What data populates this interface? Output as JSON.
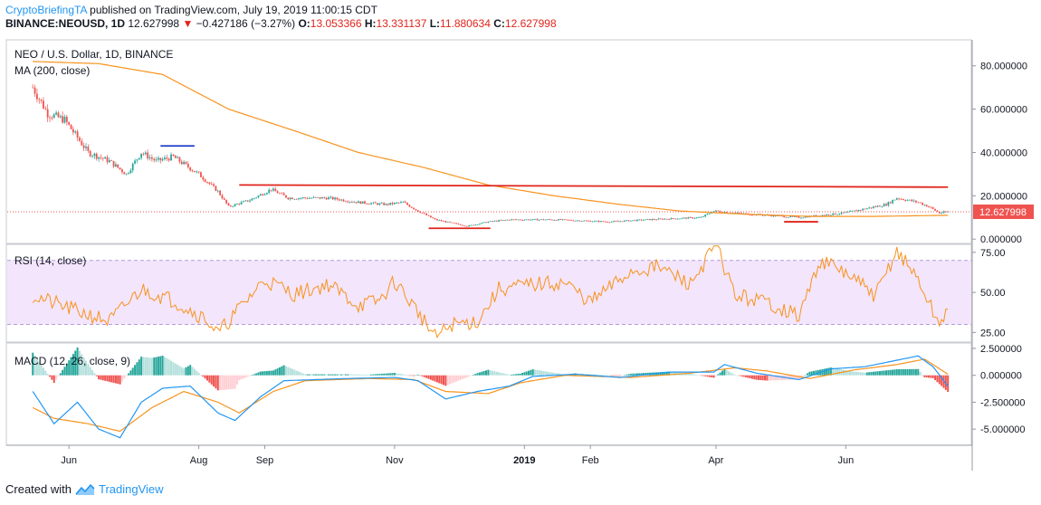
{
  "header": {
    "author": "CryptoBriefingTA",
    "published_text": "published on TradingView.com, July 19, 2019 11:00:15 CDT",
    "symbol_line": "BINANCE:NEOUSD, 1D",
    "last": "12.627998",
    "change": "−0.427186 (−3.27%)",
    "o_label": "O:",
    "o": "13.053366",
    "h_label": "H:",
    "h": "13.331137",
    "l_label": "L:",
    "l": "11.880634",
    "c_label": "C:",
    "c": "12.627998"
  },
  "footer": {
    "created_with": "Created with",
    "brand": "TradingView"
  },
  "colors": {
    "up": "#26a69a",
    "down": "#ef5350",
    "ma": "#f7931e",
    "rsi": "#f7931e",
    "macd": "#2196f3",
    "signal": "#f7931e",
    "resistance": "#e0251b",
    "support_blue": "#1f3cc7",
    "rsi_band": "#f3e5fb"
  },
  "chart_data": [
    {
      "type": "candlestick",
      "title": "NEO / U.S. Dollar, 1D, BINANCE",
      "indicator": "MA (200, close)",
      "last_value_label": "12.627998",
      "y_ticks": [
        "80.000000",
        "60.000000",
        "40.000000",
        "20.000000",
        "0.000000"
      ],
      "ylim": [
        -2,
        92
      ],
      "x_ticks": [
        "Jun",
        "Aug",
        "Sep",
        "Nov",
        "2019",
        "Feb",
        "Apr",
        "Jun"
      ],
      "close_keypoints": [
        [
          "2018-05-15",
          70
        ],
        [
          "2018-05-22",
          58
        ],
        [
          "2018-05-30",
          55
        ],
        [
          "2018-06-10",
          40
        ],
        [
          "2018-06-20",
          36
        ],
        [
          "2018-06-28",
          30
        ],
        [
          "2018-07-05",
          40
        ],
        [
          "2018-07-12",
          36
        ],
        [
          "2018-07-20",
          38
        ],
        [
          "2018-08-01",
          30
        ],
        [
          "2018-08-10",
          22
        ],
        [
          "2018-08-15",
          15
        ],
        [
          "2018-08-25",
          18
        ],
        [
          "2018-09-04",
          23
        ],
        [
          "2018-09-12",
          19
        ],
        [
          "2018-10-01",
          19
        ],
        [
          "2018-10-15",
          17
        ],
        [
          "2018-10-28",
          16
        ],
        [
          "2018-11-05",
          17
        ],
        [
          "2018-11-12",
          13
        ],
        [
          "2018-11-20",
          9
        ],
        [
          "2018-12-05",
          6
        ],
        [
          "2018-12-15",
          8
        ],
        [
          "2018-12-25",
          9
        ],
        [
          "2019-01-15",
          9
        ],
        [
          "2019-02-10",
          8
        ],
        [
          "2019-02-28",
          9
        ],
        [
          "2019-03-25",
          10
        ],
        [
          "2019-03-31",
          13
        ],
        [
          "2019-04-10",
          12
        ],
        [
          "2019-04-25",
          11
        ],
        [
          "2019-05-10",
          10
        ],
        [
          "2019-05-20",
          11
        ],
        [
          "2019-05-31",
          12
        ],
        [
          "2019-06-10",
          14
        ],
        [
          "2019-06-20",
          16
        ],
        [
          "2019-06-25",
          19
        ],
        [
          "2019-07-05",
          17
        ],
        [
          "2019-07-10",
          15
        ],
        [
          "2019-07-15",
          12
        ],
        [
          "2019-07-19",
          12.63
        ]
      ],
      "ma_keypoints": [
        [
          "2018-05-15",
          82
        ],
        [
          "2018-06-15",
          81
        ],
        [
          "2018-07-15",
          76
        ],
        [
          "2018-08-15",
          60
        ],
        [
          "2018-09-15",
          50
        ],
        [
          "2018-10-15",
          40
        ],
        [
          "2018-11-15",
          33
        ],
        [
          "2018-12-15",
          25
        ],
        [
          "2019-01-15",
          20
        ],
        [
          "2019-02-15",
          16
        ],
        [
          "2019-03-15",
          13
        ],
        [
          "2019-04-15",
          11.5
        ],
        [
          "2019-05-15",
          10.5
        ],
        [
          "2019-06-15",
          10.5
        ],
        [
          "2019-07-19",
          11
        ]
      ],
      "trendlines": [
        {
          "color": "resistance",
          "from": [
            "2018-08-20",
            25
          ],
          "to": [
            "2019-07-19",
            24
          ]
        },
        {
          "color": "support_blue",
          "from": [
            "2018-07-14",
            43
          ],
          "to": [
            "2018-07-30",
            43
          ]
        },
        {
          "color": "resistance",
          "from": [
            "2018-11-17",
            5
          ],
          "to": [
            "2018-12-16",
            5
          ]
        },
        {
          "color": "resistance",
          "from": [
            "2019-05-03",
            8
          ],
          "to": [
            "2019-05-19",
            8
          ]
        }
      ]
    },
    {
      "type": "line",
      "title": "RSI (14, close)",
      "y_ticks": [
        "75.00",
        "50.00",
        "25.00"
      ],
      "ylim": [
        19,
        80
      ],
      "band": [
        30,
        70
      ],
      "keypoints": [
        [
          "2018-05-15",
          48
        ],
        [
          "2018-06-01",
          40
        ],
        [
          "2018-06-20",
          32
        ],
        [
          "2018-07-05",
          52
        ],
        [
          "2018-07-20",
          45
        ],
        [
          "2018-08-05",
          33
        ],
        [
          "2018-08-10",
          24
        ],
        [
          "2018-08-20",
          40
        ],
        [
          "2018-09-01",
          58
        ],
        [
          "2018-09-15",
          49
        ],
        [
          "2018-10-01",
          55
        ],
        [
          "2018-10-15",
          42
        ],
        [
          "2018-10-25",
          45
        ],
        [
          "2018-11-01",
          57
        ],
        [
          "2018-11-12",
          38
        ],
        [
          "2018-11-20",
          22
        ],
        [
          "2018-11-28",
          30
        ],
        [
          "2018-12-10",
          32
        ],
        [
          "2018-12-20",
          52
        ],
        [
          "2019-01-05",
          55
        ],
        [
          "2019-01-20",
          56
        ],
        [
          "2019-02-01",
          44
        ],
        [
          "2019-02-20",
          63
        ],
        [
          "2019-03-05",
          66
        ],
        [
          "2019-03-20",
          55
        ],
        [
          "2019-04-01",
          80
        ],
        [
          "2019-04-10",
          48
        ],
        [
          "2019-04-25",
          44
        ],
        [
          "2019-05-10",
          35
        ],
        [
          "2019-05-20",
          70
        ],
        [
          "2019-06-01",
          62
        ],
        [
          "2019-06-15",
          48
        ],
        [
          "2019-06-25",
          76
        ],
        [
          "2019-07-05",
          58
        ],
        [
          "2019-07-15",
          29
        ],
        [
          "2019-07-19",
          42
        ]
      ]
    },
    {
      "type": "histogram+line",
      "title": "MACD (12, 26, close, 9)",
      "y_ticks": [
        "2.500000",
        "0.000000",
        "-2.500000",
        "-5.000000"
      ],
      "ylim": [
        -6.5,
        3
      ],
      "macd_keypoints": [
        [
          "2018-05-15",
          -1.5
        ],
        [
          "2018-05-25",
          -4.5
        ],
        [
          "2018-06-05",
          -2.5
        ],
        [
          "2018-06-15",
          -5
        ],
        [
          "2018-06-25",
          -5.8
        ],
        [
          "2018-07-05",
          -2.5
        ],
        [
          "2018-07-15",
          -1.2
        ],
        [
          "2018-07-28",
          -1.0
        ],
        [
          "2018-08-10",
          -3.5
        ],
        [
          "2018-08-18",
          -4.2
        ],
        [
          "2018-08-30",
          -2.0
        ],
        [
          "2018-09-10",
          -0.5
        ],
        [
          "2018-10-10",
          -0.3
        ],
        [
          "2018-11-01",
          -0.2
        ],
        [
          "2018-11-12",
          -0.5
        ],
        [
          "2018-11-25",
          -2.2
        ],
        [
          "2018-12-10",
          -1.5
        ],
        [
          "2018-12-25",
          -1.0
        ],
        [
          "2019-01-05",
          -0.1
        ],
        [
          "2019-01-25",
          0.1
        ],
        [
          "2019-02-15",
          -0.2
        ],
        [
          "2019-03-10",
          0.3
        ],
        [
          "2019-03-31",
          0.3
        ],
        [
          "2019-04-05",
          1.0
        ],
        [
          "2019-04-20",
          0.2
        ],
        [
          "2019-05-10",
          -0.4
        ],
        [
          "2019-05-25",
          0.6
        ],
        [
          "2019-06-10",
          0.8
        ],
        [
          "2019-06-25",
          1.4
        ],
        [
          "2019-07-05",
          1.8
        ],
        [
          "2019-07-12",
          0.8
        ],
        [
          "2019-07-19",
          -1.0
        ]
      ],
      "signal_keypoints": [
        [
          "2018-05-15",
          -3.0
        ],
        [
          "2018-05-25",
          -4.0
        ],
        [
          "2018-06-10",
          -4.5
        ],
        [
          "2018-06-25",
          -5.2
        ],
        [
          "2018-07-10",
          -3.0
        ],
        [
          "2018-07-25",
          -1.5
        ],
        [
          "2018-08-10",
          -2.5
        ],
        [
          "2018-08-20",
          -3.5
        ],
        [
          "2018-09-05",
          -1.5
        ],
        [
          "2018-09-20",
          -0.5
        ],
        [
          "2018-10-20",
          -0.3
        ],
        [
          "2018-11-10",
          -0.4
        ],
        [
          "2018-11-25",
          -1.5
        ],
        [
          "2018-12-15",
          -1.7
        ],
        [
          "2018-12-30",
          -0.7
        ],
        [
          "2019-01-20",
          0.0
        ],
        [
          "2019-02-20",
          -0.2
        ],
        [
          "2019-03-20",
          0.2
        ],
        [
          "2019-04-10",
          0.7
        ],
        [
          "2019-04-25",
          0.4
        ],
        [
          "2019-05-15",
          -0.3
        ],
        [
          "2019-06-05",
          0.5
        ],
        [
          "2019-06-25",
          1.0
        ],
        [
          "2019-07-08",
          1.5
        ],
        [
          "2019-07-19",
          0.1
        ]
      ]
    }
  ]
}
